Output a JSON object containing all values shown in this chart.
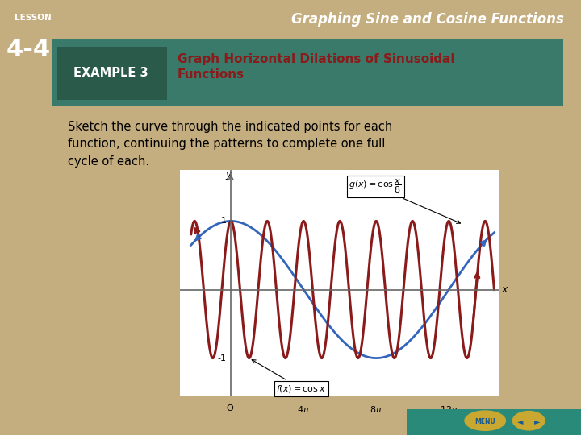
{
  "title_text": "Graph Horizontal Dilations of Sinusoidal\nFunctions",
  "body_text": "Sketch the curve through the indicated points for each\nfunction, continuing the patterns to complete one full\ncycle of each.",
  "header_right": "Graphing Sine and Cosine Functions",
  "example_label": "EXAMPLE 3",
  "f_label": "f(x) = cos x",
  "g_label_latex": "g(x) = \\cos\\dfrac{x}{8}",
  "bg_color": "#FFFFFF",
  "slide_bg": "#C4AD7E",
  "header_bg": "#1A5A8C",
  "example_strip_bg": "#3A7A6A",
  "example_badge_bg": "#2A5A4A",
  "title_color": "#8B1A1A",
  "f_color": "#8B1A1A",
  "g_color": "#3366BB",
  "axis_color": "#666666",
  "pi": 3.14159265358979
}
